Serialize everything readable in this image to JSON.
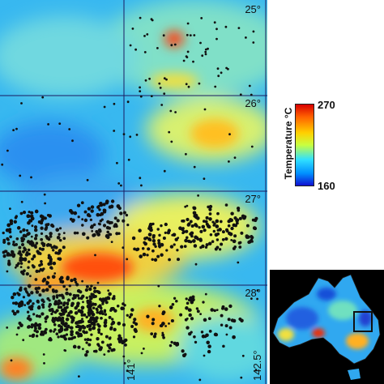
{
  "map": {
    "latitude_labels": [
      "25°",
      "26°",
      "27°",
      "28°"
    ],
    "longitude_labels": [
      "141°",
      "142.5°"
    ],
    "colors": {
      "background": "#2fb0f0",
      "hot": "#e82000",
      "warm": "#ffb000",
      "mild": "#c0f060",
      "cool": "#2090f0",
      "dots": "#111111",
      "grid": "#1a1a60"
    }
  },
  "legend": {
    "title": "Temperature °C",
    "max_label": "270",
    "min_label": "160",
    "max_value": 270,
    "min_value": 160
  },
  "inset": {
    "description_icon": "australia-inset-map",
    "highlight_color": "#111111"
  }
}
